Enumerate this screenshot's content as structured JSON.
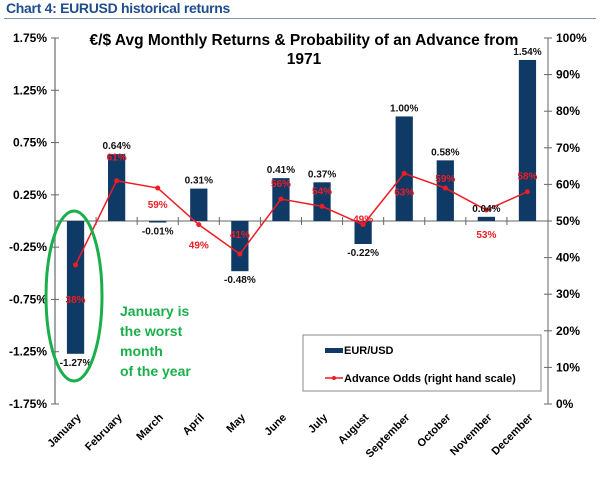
{
  "header": {
    "title": "Chart 4: EURUSD historical returns"
  },
  "colors": {
    "bar": "#0f3a66",
    "line": "#ee1c25",
    "annotation": "#1aaf4b",
    "header": "#1f4e8c"
  },
  "chart_data": {
    "type": "bar",
    "title": "€/$ Avg Monthly Returns & Probability of an Advance from 1971",
    "title_lines": [
      "€/$ Avg Monthly Returns & Probability of an Advance from",
      "1971"
    ],
    "xlabel": "",
    "ylabel": "",
    "categories": [
      "January",
      "February",
      "March",
      "April",
      "May",
      "June",
      "July",
      "August",
      "September",
      "October",
      "November",
      "December"
    ],
    "series": [
      {
        "name": "EUR/USD",
        "type": "bar",
        "axis": "left",
        "values": [
          -1.27,
          0.64,
          -0.01,
          0.31,
          -0.48,
          0.41,
          0.37,
          -0.22,
          1.0,
          0.58,
          0.04,
          1.54
        ],
        "labels": [
          "-1.27%",
          "0.64%",
          "-0.01%",
          "0.31%",
          "-0.48%",
          "0.41%",
          "0.37%",
          "-0.22%",
          "1.00%",
          "0.58%",
          "0.04%",
          "1.54%"
        ]
      },
      {
        "name": "Advance Odds (right hand scale)",
        "type": "line",
        "axis": "right",
        "values": [
          38,
          61,
          59,
          49,
          41,
          56,
          54,
          49,
          63,
          59,
          53,
          58
        ],
        "labels": [
          "38%",
          "61%",
          "59%",
          "49%",
          "41%",
          "56%",
          "54%",
          "49%",
          "63%",
          "59%",
          "53%",
          "58%"
        ]
      }
    ],
    "left_axis": {
      "ylim": [
        -1.75,
        1.75
      ],
      "ticks": [
        1.75,
        1.25,
        0.75,
        0.25,
        -0.25,
        -0.75,
        -1.25,
        -1.75
      ],
      "tick_labels": [
        "1.75%",
        "1.25%",
        "0.75%",
        "0.25%",
        "-0.25%",
        "-0.75%",
        "-1.25%",
        "-1.75%"
      ]
    },
    "right_axis": {
      "ylim": [
        0,
        100
      ],
      "ticks": [
        100,
        90,
        80,
        70,
        60,
        50,
        40,
        30,
        20,
        10,
        0
      ],
      "tick_labels": [
        "100%",
        "90%",
        "80%",
        "70%",
        "60%",
        "50%",
        "40%",
        "30%",
        "20%",
        "10%",
        "0%"
      ]
    },
    "grid": false,
    "legend": {
      "position": "bottom-right",
      "entries": [
        "EUR/USD",
        "Advance Odds (right hand scale)"
      ]
    },
    "annotations": [
      {
        "text_lines": [
          "January is",
          "the worst",
          "month",
          "of the year"
        ],
        "target": "January",
        "shape": "ellipse"
      }
    ]
  }
}
